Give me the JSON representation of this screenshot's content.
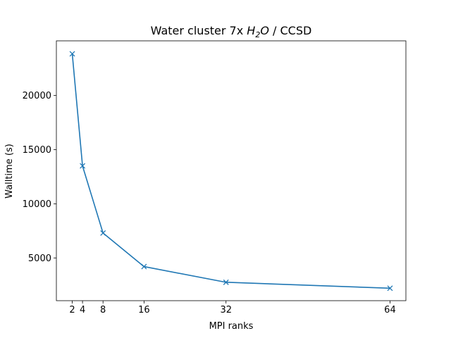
{
  "chart_data": {
    "type": "line",
    "title_parts": [
      "Water cluster 7x ",
      "H",
      "2",
      "O",
      " / CCSD"
    ],
    "xlabel": "MPI ranks",
    "ylabel": "Walltime (s)",
    "xlim": [
      -1.1,
      67.1
    ],
    "ylim": [
      1050,
      25050
    ],
    "xticks": [
      2,
      4,
      8,
      16,
      32,
      64
    ],
    "yticks": [
      5000,
      10000,
      15000,
      20000
    ],
    "series": [
      {
        "name": "walltime",
        "color": "#1f77b4",
        "marker": "x",
        "x": [
          2,
          4,
          8,
          16,
          32,
          64
        ],
        "y": [
          23850,
          13500,
          7300,
          4200,
          2750,
          2200
        ]
      }
    ]
  }
}
